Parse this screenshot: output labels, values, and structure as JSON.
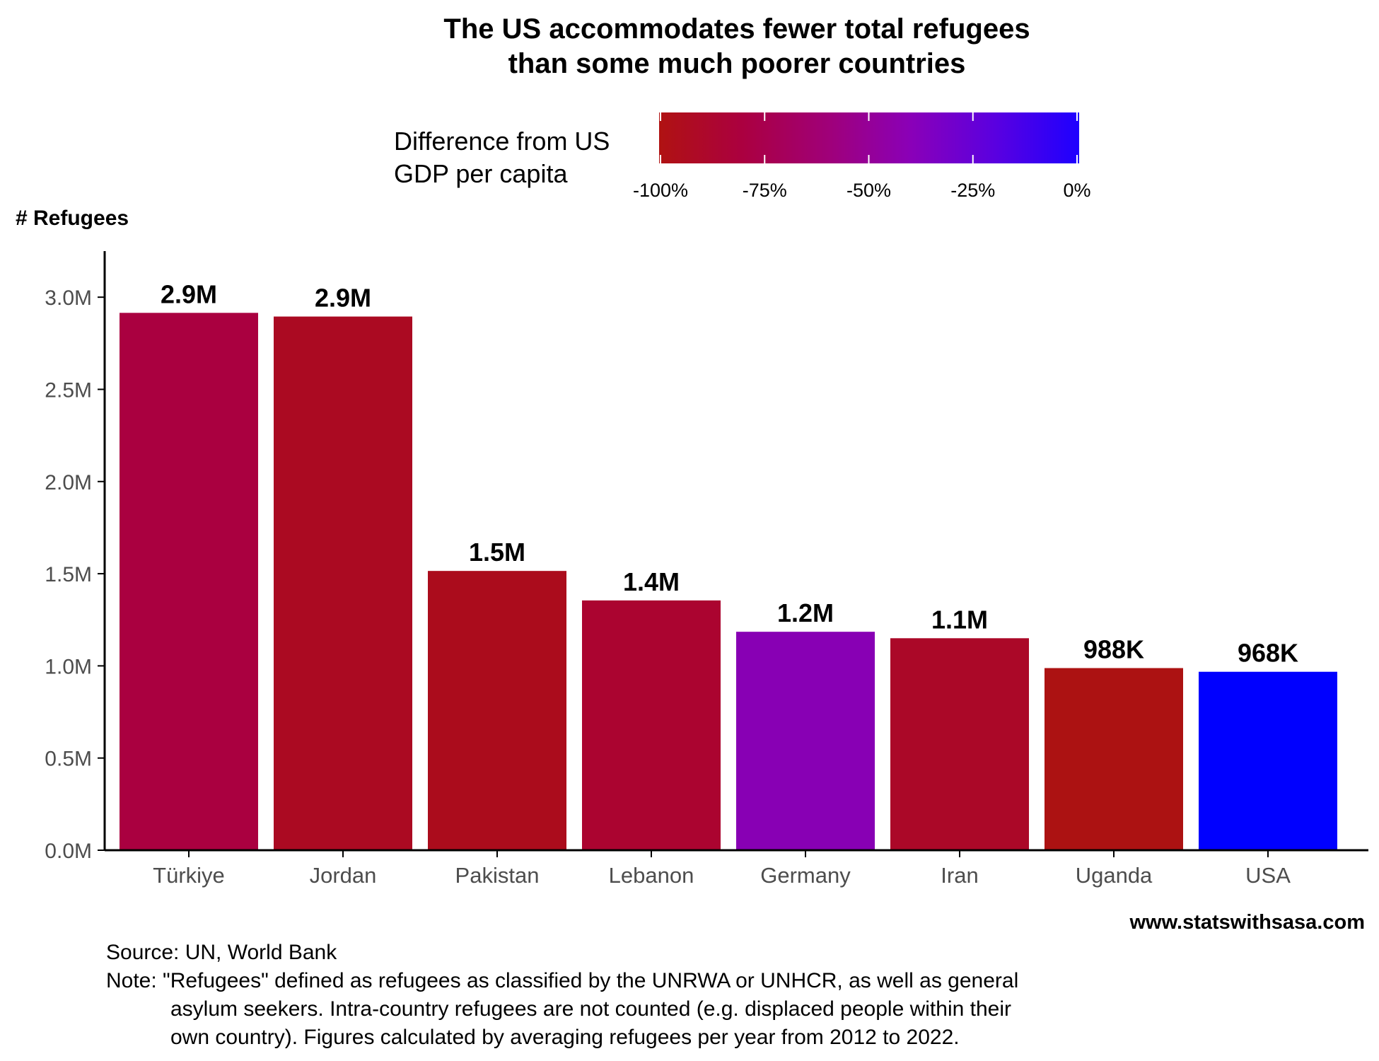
{
  "chart_data": {
    "type": "bar",
    "title_lines": [
      "The US accommodates fewer total refugees",
      "than some much poorer countries"
    ],
    "ylabel": "# Refugees",
    "xlabel": "",
    "ylim": [
      0,
      3250000
    ],
    "yticks": [
      {
        "value": 0,
        "label": "0.0M"
      },
      {
        "value": 500000,
        "label": "0.5M"
      },
      {
        "value": 1000000,
        "label": "1.0M"
      },
      {
        "value": 1500000,
        "label": "1.5M"
      },
      {
        "value": 2000000,
        "label": "2.0M"
      },
      {
        "value": 2500000,
        "label": "2.5M"
      },
      {
        "value": 3000000,
        "label": "3.0M"
      }
    ],
    "grid": false,
    "categories": [
      "Türkiye",
      "Jordan",
      "Pakistan",
      "Lebanon",
      "Germany",
      "Iran",
      "Uganda",
      "USA"
    ],
    "values": [
      2915000,
      2895000,
      1515000,
      1355000,
      1185000,
      1150000,
      988000,
      968000
    ],
    "data_labels": [
      "2.9M",
      "2.9M",
      "1.5M",
      "1.4M",
      "1.2M",
      "1.1M",
      "988K",
      "968K"
    ],
    "colors": [
      "#aa0040",
      "#ab0a22",
      "#ab0c1c",
      "#ab0430",
      "#8800b4",
      "#ab0828",
      "#ac1212",
      "#0000ff"
    ],
    "legend": {
      "title_lines": [
        "Difference from US",
        "GDP per capita"
      ],
      "placement": "top",
      "gradient": [
        "#b01212",
        "#ab0040",
        "#a00078",
        "#8a00b8",
        "#5a00e0",
        "#1e00ff"
      ],
      "ticks": [
        "-100%",
        "-75%",
        "-50%",
        "-25%",
        "0%"
      ]
    }
  },
  "website": "www.statswithsasa.com",
  "caption_lines": [
    "Source: UN, World Bank",
    "Note: \"Refugees\" defined as refugees as classified by the UNRWA or UNHCR, as well as general",
    "asylum seekers. Intra-country refugees are not counted (e.g. displaced people within their",
    "own country). Figures calculated by averaging refugees per year from 2012 to 2022."
  ]
}
